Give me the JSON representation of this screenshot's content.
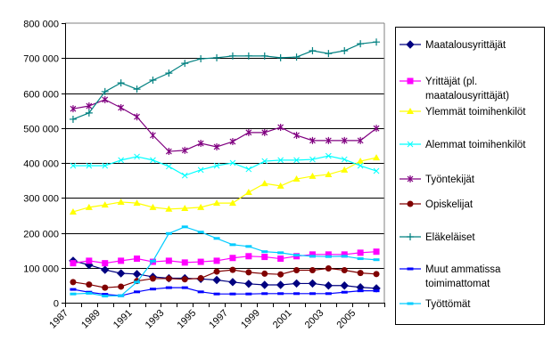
{
  "chart_data": {
    "type": "line",
    "title": "",
    "xlabel": "",
    "ylabel": "",
    "ylim": [
      0,
      800000
    ],
    "yticks": [
      0,
      100000,
      200000,
      300000,
      400000,
      500000,
      600000,
      700000,
      800000
    ],
    "ytick_labels": [
      "0",
      "100 000",
      "200 000",
      "300 000",
      "400 000",
      "500 000",
      "600 000",
      "700 000",
      "800 000"
    ],
    "grid": true,
    "legend_position": "right",
    "categories": [
      "1987",
      "1988",
      "1989",
      "1990",
      "1991",
      "1992",
      "1993",
      "1994",
      "1995",
      "1996",
      "1997",
      "1998",
      "1999",
      "2000",
      "2001",
      "2002",
      "2003",
      "2004",
      "2005",
      "2006"
    ],
    "xtick_labels": [
      "1987",
      "1989",
      "1991",
      "1993",
      "1995",
      "1997",
      "1999",
      "2001",
      "2003",
      "2005"
    ],
    "series": [
      {
        "name": "Maatalousyrittäjät",
        "color": "#000080",
        "marker": "diamond",
        "values": [
          120000,
          108000,
          94000,
          84000,
          82000,
          74000,
          70000,
          70000,
          68000,
          65000,
          59000,
          54000,
          51000,
          51000,
          55000,
          55000,
          49000,
          49000,
          44000,
          41000
        ]
      },
      {
        "name": "Yrittäjät (pl. maatalousyrittäjät)",
        "color": "#FF00FF",
        "marker": "square",
        "values": [
          113000,
          120000,
          113000,
          120000,
          126000,
          117000,
          120000,
          115000,
          117000,
          120000,
          128000,
          133000,
          131000,
          126000,
          133000,
          138000,
          138000,
          138000,
          143000,
          146000
        ]
      },
      {
        "name": "Ylemmät toimihenkilöt",
        "color": "#FFFF00",
        "marker": "triangle",
        "values": [
          260000,
          273000,
          280000,
          288000,
          285000,
          273000,
          268000,
          270000,
          273000,
          285000,
          285000,
          316000,
          341000,
          334000,
          354000,
          362000,
          367000,
          380000,
          405000,
          415000
        ]
      },
      {
        "name": "Alemmat toimihenkilöt",
        "color": "#00FFFF",
        "marker": "x",
        "values": [
          392000,
          392000,
          392000,
          408000,
          418000,
          408000,
          390000,
          364000,
          380000,
          392000,
          400000,
          382000,
          405000,
          408000,
          408000,
          410000,
          420000,
          410000,
          392000,
          377000
        ]
      },
      {
        "name": "Työntekijät",
        "color": "#800080",
        "marker": "star",
        "values": [
          555000,
          563000,
          581000,
          558000,
          532000,
          479000,
          433000,
          436000,
          456000,
          446000,
          461000,
          487000,
          487000,
          502000,
          479000,
          464000,
          464000,
          464000,
          464000,
          499000
        ]
      },
      {
        "name": "Opiskelijat",
        "color": "#800000",
        "marker": "circle",
        "values": [
          59000,
          52000,
          43000,
          46000,
          62000,
          69000,
          69000,
          67000,
          70000,
          89000,
          94000,
          87000,
          83000,
          81000,
          93000,
          93000,
          98000,
          93000,
          85000,
          82000
        ]
      },
      {
        "name": "Eläkeläiset",
        "color": "#008080",
        "marker": "plus",
        "values": [
          525000,
          543000,
          604000,
          629000,
          611000,
          637000,
          657000,
          685000,
          698000,
          701000,
          706000,
          706000,
          706000,
          701000,
          703000,
          721000,
          713000,
          721000,
          741000,
          746000
        ]
      },
      {
        "name": "Muut ammatissa toimimattomat",
        "color": "#0000FF",
        "marker": "dash",
        "values": [
          38000,
          30000,
          24000,
          20000,
          31000,
          39000,
          43000,
          43000,
          31000,
          25000,
          25000,
          25000,
          26000,
          26000,
          26000,
          26000,
          26000,
          30000,
          34000,
          34000
        ]
      },
      {
        "name": "Työttömät",
        "color": "#00CCFF",
        "marker": "dash",
        "values": [
          25000,
          27000,
          19000,
          20000,
          59000,
          119000,
          198000,
          217000,
          202000,
          184000,
          166000,
          161000,
          146000,
          143000,
          136000,
          133000,
          132000,
          133000,
          126000,
          123000
        ]
      }
    ],
    "legend_lines": [
      [
        "Maatalousyrittäjät"
      ],
      [
        "Yrittäjät (pl.",
        "maatalousyrittäjät)"
      ],
      [
        "Ylemmät toimihenkilöt"
      ],
      [
        "Alemmat toimihenkilöt"
      ],
      [
        "Työntekijät"
      ],
      [
        "Opiskelijat"
      ],
      [
        "Eläkeläiset"
      ],
      [
        "Muut ammatissa",
        "toimimattomat"
      ],
      [
        "Työttömät"
      ]
    ]
  }
}
